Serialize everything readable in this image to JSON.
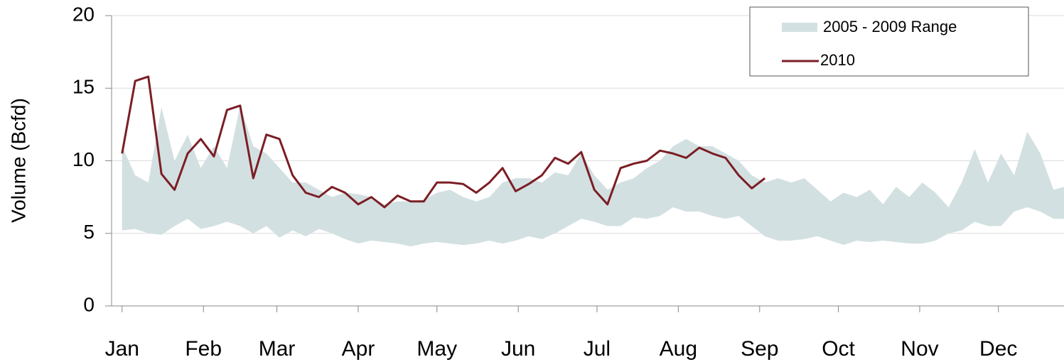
{
  "chart_data": {
    "type": "range-line",
    "y_label": "Volume (Bcfd)",
    "xlim": [
      -3,
      360
    ],
    "xticks": [
      {
        "value": 1,
        "label": "Jan"
      },
      {
        "value": 32,
        "label": "Feb"
      },
      {
        "value": 60,
        "label": "Mar"
      },
      {
        "value": 91,
        "label": "Apr"
      },
      {
        "value": 121,
        "label": "May"
      },
      {
        "value": 152,
        "label": "Jun"
      },
      {
        "value": 182,
        "label": "Jul"
      },
      {
        "value": 213,
        "label": "Aug"
      },
      {
        "value": 244,
        "label": "Sep"
      },
      {
        "value": 274,
        "label": "Oct"
      },
      {
        "value": 305,
        "label": "Nov"
      },
      {
        "value": 335,
        "label": "Dec"
      }
    ],
    "ylim": [
      0,
      20
    ],
    "yticks": [
      0,
      5,
      10,
      15,
      20
    ],
    "grid": true,
    "legend": "top-right",
    "x": [
      1,
      6,
      11,
      16,
      21,
      26,
      31,
      36,
      41,
      46,
      51,
      56,
      61,
      66,
      71,
      76,
      81,
      86,
      91,
      96,
      101,
      106,
      111,
      116,
      121,
      126,
      131,
      136,
      141,
      146,
      151,
      156,
      161,
      166,
      171,
      176,
      181,
      186,
      191,
      196,
      201,
      206,
      211,
      216,
      221,
      226,
      231,
      236,
      241,
      246,
      251,
      256,
      261,
      266,
      271,
      276,
      281,
      286,
      291,
      296,
      301,
      306,
      311,
      316,
      321,
      326,
      331,
      336,
      341,
      346,
      351,
      356,
      360
    ],
    "series": [
      {
        "name": "2005 - 2009 Range",
        "color": "#d3e0e1",
        "low": [
          5.2,
          5.3,
          5,
          4.9,
          5.5,
          6,
          5.3,
          5.5,
          5.8,
          5.5,
          5,
          5.5,
          4.7,
          5.2,
          4.8,
          5.3,
          5,
          4.6,
          4.3,
          4.5,
          4.4,
          4.3,
          4.1,
          4.3,
          4.4,
          4.3,
          4.2,
          4.3,
          4.5,
          4.3,
          4.5,
          4.8,
          4.6,
          5,
          5.5,
          6,
          5.8,
          5.5,
          5.5,
          6.1,
          6,
          6.2,
          6.8,
          6.5,
          6.5,
          6.2,
          6,
          6.2,
          5.5,
          4.8,
          4.5,
          4.5,
          4.6,
          4.8,
          4.5,
          4.2,
          4.5,
          4.4,
          4.5,
          4.4,
          4.3,
          4.3,
          4.5,
          5,
          5.2,
          5.8,
          5.5,
          5.5,
          6.5,
          6.8,
          6.5,
          6,
          6
        ],
        "high": [
          11,
          9,
          8.5,
          13.7,
          10,
          11.8,
          9.5,
          11,
          9.5,
          13.8,
          11,
          10.5,
          9.5,
          8.5,
          8.5,
          8,
          7.5,
          7.8,
          7.7,
          7.5,
          7,
          7.2,
          7.2,
          7.3,
          7.8,
          8,
          7.5,
          7.2,
          7.5,
          8.5,
          8.8,
          8.8,
          8.5,
          9.2,
          9,
          10.5,
          9,
          8,
          8.5,
          8.8,
          9.5,
          10,
          11,
          11.5,
          11,
          11,
          10.5,
          10,
          9,
          8.5,
          8.8,
          8.5,
          8.8,
          8,
          7.2,
          7.8,
          7.5,
          8,
          7,
          8.2,
          7.5,
          8.5,
          7.8,
          6.8,
          8.5,
          10.8,
          8.5,
          10.5,
          9,
          12,
          10.5,
          8,
          8.2
        ]
      },
      {
        "name": "2010",
        "color": "#7b1e25",
        "values": [
          10.5,
          15.5,
          15.8,
          9.1,
          8,
          10.5,
          11.5,
          10.3,
          13.5,
          13.8,
          8.8,
          11.8,
          11.5,
          9,
          7.8,
          7.5,
          8.2,
          7.8,
          7,
          7.5,
          6.8,
          7.6,
          7.2,
          7.2,
          8.5,
          8.5,
          8.4,
          7.8,
          8.5,
          9.5,
          7.9,
          8.4,
          9,
          10.2,
          9.8,
          10.6,
          8,
          7,
          9.5,
          9.8,
          10,
          10.7,
          10.5,
          10.2,
          10.9,
          10.5,
          10.2,
          9,
          8.1,
          8.8,
          null,
          null,
          null,
          null,
          null,
          null,
          null,
          null,
          null,
          null,
          null,
          null,
          null,
          null,
          null,
          null,
          null,
          null,
          null,
          null,
          null,
          null,
          null
        ]
      }
    ]
  }
}
